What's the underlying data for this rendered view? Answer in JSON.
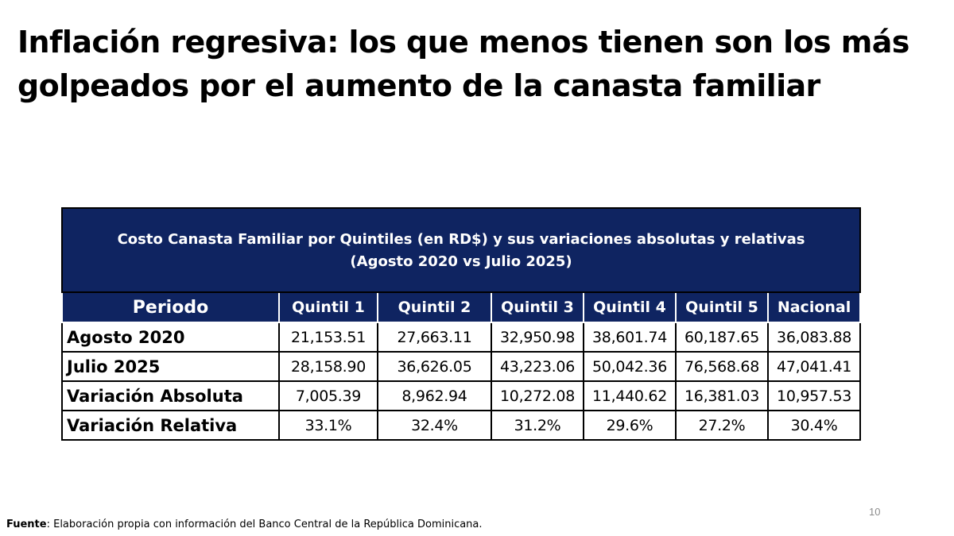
{
  "title": "Inflación regresiva: los que menos tienen son los más golpeados por el aumento de la canasta familiar",
  "table": {
    "caption_line1": "Costo Canasta Familiar por Quintiles (en RD$) y sus variaciones absolutas y relativas",
    "caption_line2": "(Agosto 2020 vs Julio 2025)",
    "headers": [
      "Periodo",
      "Quintil 1",
      "Quintil 2",
      "Quintil 3",
      "Quintil 4",
      "Quintil 5",
      "Nacional"
    ],
    "rows": [
      {
        "label": "Agosto 2020",
        "values": [
          "21,153.51",
          "27,663.11",
          "32,950.98",
          "38,601.74",
          "60,187.65",
          "36,083.88"
        ]
      },
      {
        "label": "Julio 2025",
        "values": [
          "28,158.90",
          "36,626.05",
          "43,223.06",
          "50,042.36",
          "76,568.68",
          "47,041.41"
        ]
      },
      {
        "label": "Variación Absoluta",
        "values": [
          "7,005.39",
          "8,962.94",
          "10,272.08",
          "11,440.62",
          "16,381.03",
          "10,957.53"
        ]
      },
      {
        "label": "Variación Relativa",
        "values": [
          "33.1%",
          "32.4%",
          "31.2%",
          "29.6%",
          "27.2%",
          "30.4%"
        ]
      }
    ]
  },
  "page_number": "10",
  "source": {
    "label": "Fuente",
    "text": ": Elaboración propia con información del Banco Central de la República Dominicana."
  },
  "colors": {
    "header_bg": "#0f2461",
    "header_text": "#ffffff"
  }
}
